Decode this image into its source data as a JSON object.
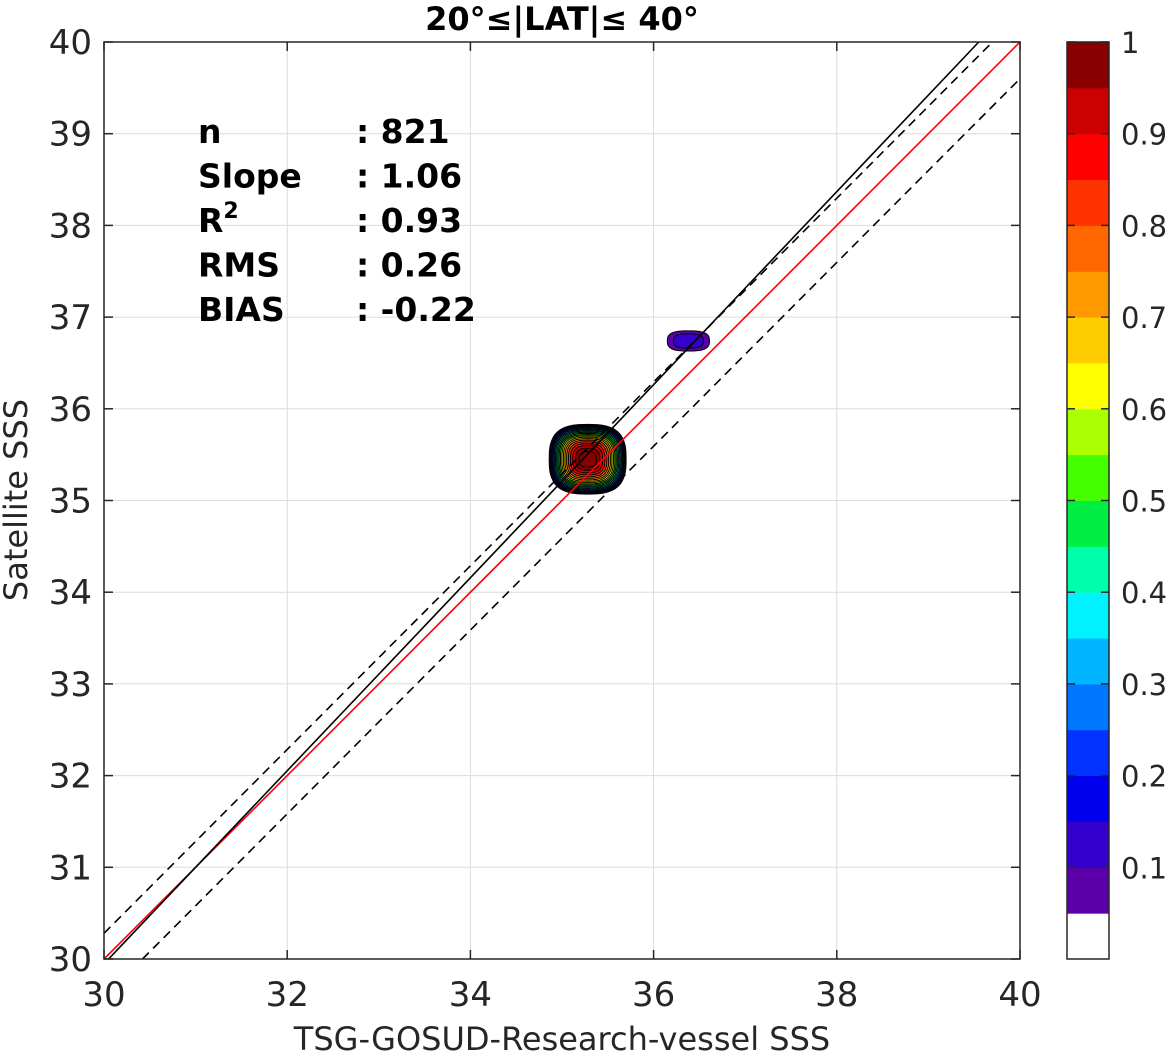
{
  "chart_data": {
    "type": "scatter",
    "title": "20°≤|LAT|≤ 40°",
    "xlabel": "TSG-GOSUD-Research-vessel SSS",
    "ylabel": "Satellite SSS",
    "xlim": [
      30,
      40
    ],
    "ylim": [
      30,
      40
    ],
    "x_ticks": [
      "30",
      "32",
      "34",
      "36",
      "38",
      "40"
    ],
    "y_ticks": [
      "30",
      "31",
      "32",
      "33",
      "34",
      "35",
      "36",
      "37",
      "38",
      "39",
      "40"
    ],
    "grid": true,
    "stats": [
      {
        "label": "n",
        "value": ": 821"
      },
      {
        "label": "Slope",
        "value": ": 1.06"
      },
      {
        "label": "R",
        "sup": "2",
        "value": ": 0.93"
      },
      {
        "label": "RMS",
        "value": ": 0.26"
      },
      {
        "label": "BIAS",
        "value": ": -0.22"
      }
    ],
    "lines": [
      {
        "style": "one-to-one",
        "color": "#ff0000",
        "points": [
          [
            30,
            30
          ],
          [
            40,
            40
          ]
        ]
      },
      {
        "style": "regression",
        "color": "#000000",
        "points": [
          [
            30.05,
            30
          ],
          [
            39.55,
            40
          ]
        ]
      },
      {
        "style": "dashed-upper",
        "color": "#000000",
        "points": [
          [
            30,
            30.28
          ],
          [
            39.7,
            40
          ]
        ]
      },
      {
        "style": "dashed-lower",
        "color": "#000000",
        "points": [
          [
            30.42,
            30
          ],
          [
            40,
            39.6
          ]
        ]
      }
    ],
    "density_clusters": [
      {
        "center": [
          35.28,
          35.45
        ],
        "peak": 1.0,
        "radius_x": 0.42,
        "radius_y": 0.38
      },
      {
        "center": [
          36.38,
          36.74
        ],
        "peak": 0.08,
        "radius_x": 0.23,
        "radius_y": 0.11
      }
    ],
    "colorbar": {
      "range": [
        0,
        1
      ],
      "tick_labels": [
        "0.1",
        "0.2",
        "0.3",
        "0.4",
        "0.5",
        "0.6",
        "0.7",
        "0.8",
        "0.9",
        "1"
      ],
      "colors": [
        "#ffffff",
        "#5a00a8",
        "#3300cc",
        "#0000ee",
        "#0033ff",
        "#0077ff",
        "#00b4ff",
        "#00f2ff",
        "#00ffaa",
        "#00ee44",
        "#44ff00",
        "#aaff00",
        "#ffff00",
        "#ffcc00",
        "#ff9900",
        "#ff6600",
        "#ff3300",
        "#ff0000",
        "#cc0000",
        "#880000"
      ]
    }
  }
}
